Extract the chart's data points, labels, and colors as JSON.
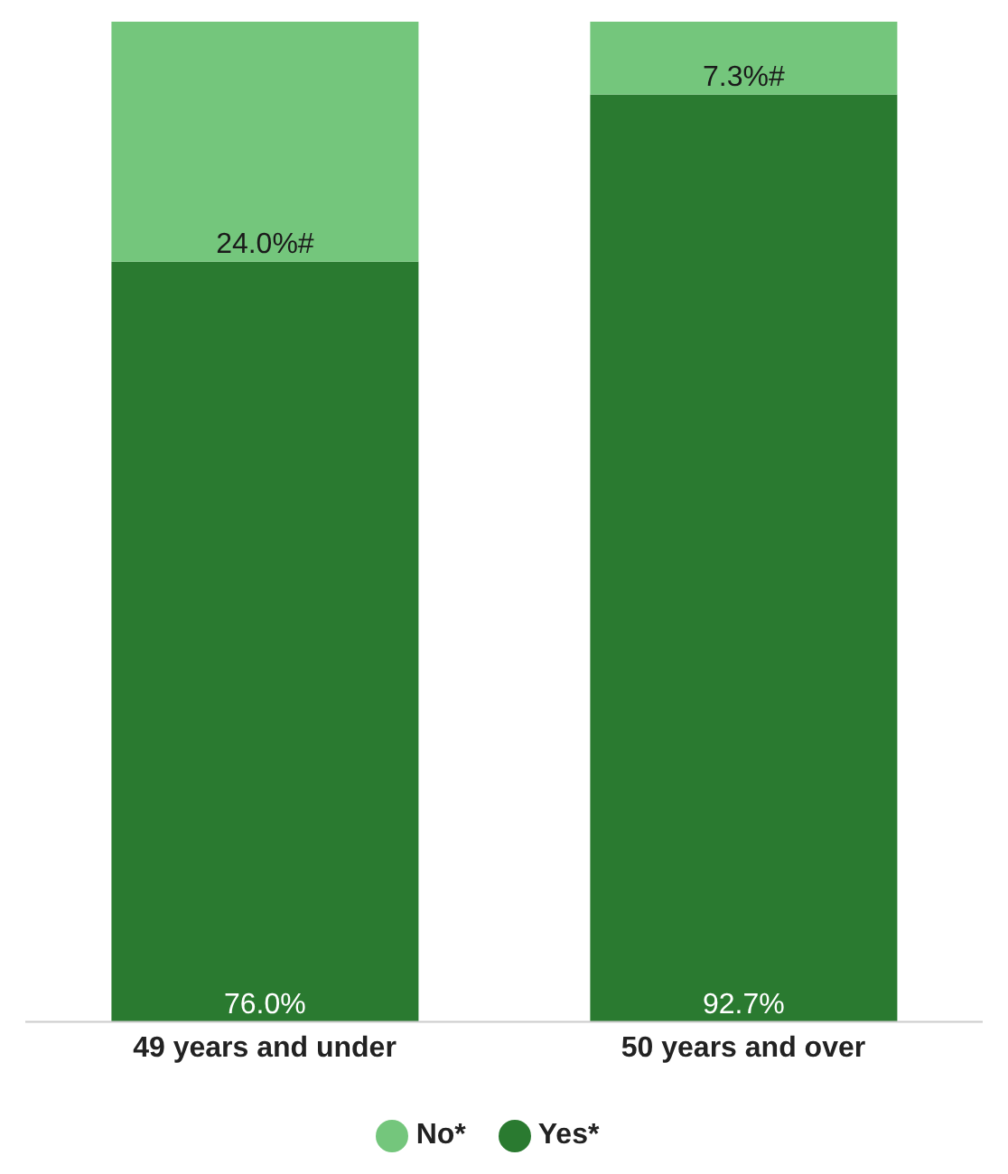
{
  "chart_data": {
    "type": "bar",
    "stacked": true,
    "categories": [
      "49 years and under",
      "50 years and over"
    ],
    "series": [
      {
        "name": "Yes*",
        "color": "#2a7a30",
        "values": [
          76.0,
          92.7
        ],
        "value_labels": [
          "76.0%",
          "92.7%"
        ]
      },
      {
        "name": "No*",
        "color": "#74c67c",
        "values": [
          24.0,
          7.3
        ],
        "value_labels": [
          "24.0%#",
          "7.3%#"
        ]
      }
    ],
    "legend": "bottom",
    "grid": false
  }
}
